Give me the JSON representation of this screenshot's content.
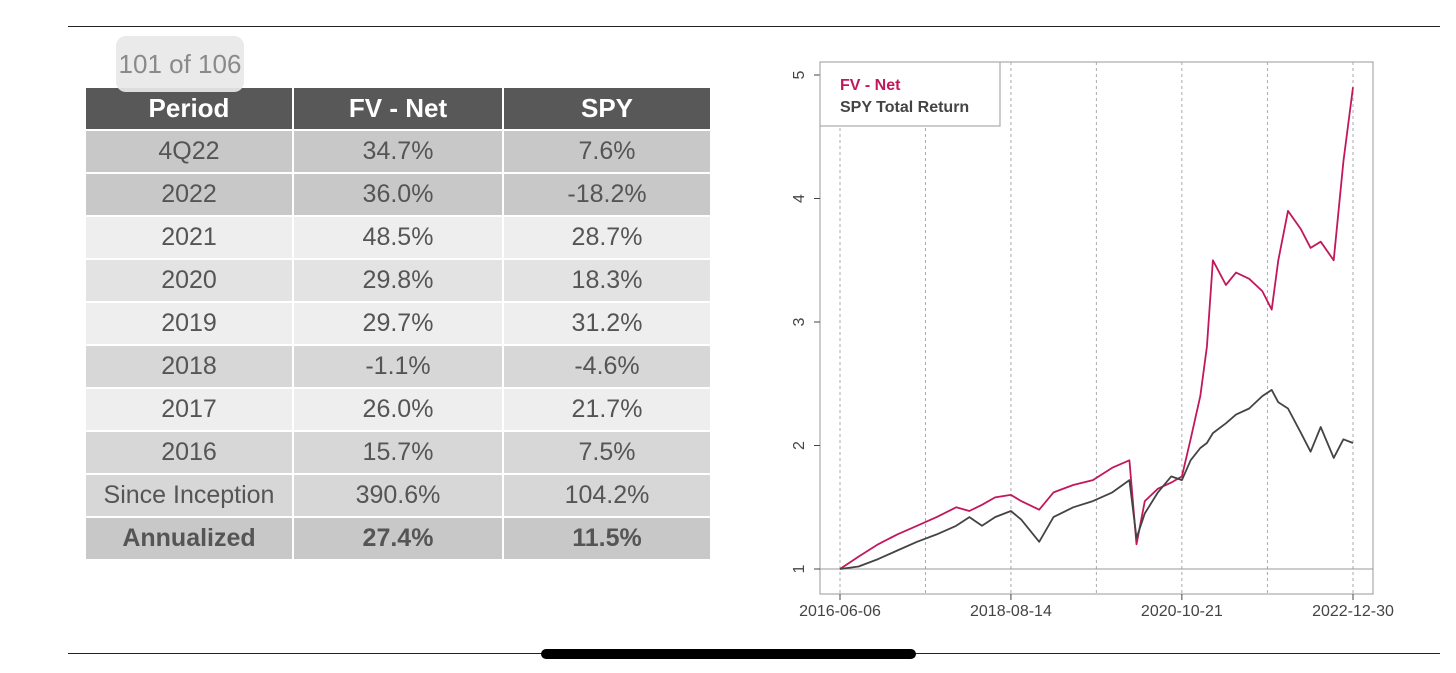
{
  "page_counter": "101 of 106",
  "table": {
    "headers": [
      "Period",
      "FV - Net",
      "SPY"
    ],
    "rows": [
      [
        "4Q22",
        "34.7%",
        "7.6%"
      ],
      [
        "2022",
        "36.0%",
        "-18.2%"
      ],
      [
        "2021",
        "48.5%",
        "28.7%"
      ],
      [
        "2020",
        "29.8%",
        "18.3%"
      ],
      [
        "2019",
        "29.7%",
        "31.2%"
      ],
      [
        "2018",
        "-1.1%",
        "-4.6%"
      ],
      [
        "2017",
        "26.0%",
        "21.7%"
      ],
      [
        "2016",
        "15.7%",
        "7.5%"
      ],
      [
        "Since Inception",
        "390.6%",
        "104.2%"
      ],
      [
        "Annualized",
        "27.4%",
        "11.5%"
      ]
    ]
  },
  "chart_data": {
    "type": "line",
    "title": "",
    "xlabel": "",
    "ylabel": "",
    "x_tick_labels": [
      "2016-06-06",
      "2018-08-14",
      "2020-10-21",
      "2022-12-30"
    ],
    "y_ticks": [
      1,
      2,
      3,
      4,
      5
    ],
    "xlim": [
      "2016-06-06",
      "2022-12-30"
    ],
    "ylim": [
      1,
      5
    ],
    "grid": "vertical dashed lines",
    "legend_position": "top-left",
    "series": [
      {
        "name": "FV - Net",
        "color": "#c2185b",
        "x": [
          "2016-06-06",
          "2016-09-01",
          "2016-12-01",
          "2017-03-01",
          "2017-06-01",
          "2017-09-01",
          "2017-12-01",
          "2018-02-01",
          "2018-04-01",
          "2018-06-01",
          "2018-08-14",
          "2018-10-01",
          "2018-12-24",
          "2019-03-01",
          "2019-06-01",
          "2019-09-01",
          "2019-12-01",
          "2020-02-19",
          "2020-03-23",
          "2020-05-01",
          "2020-07-01",
          "2020-09-01",
          "2020-10-21",
          "2020-12-01",
          "2021-01-15",
          "2021-02-15",
          "2021-03-15",
          "2021-05-15",
          "2021-07-01",
          "2021-09-01",
          "2021-11-01",
          "2021-12-15",
          "2022-01-15",
          "2022-03-01",
          "2022-05-01",
          "2022-06-15",
          "2022-08-01",
          "2022-10-01",
          "2022-11-15",
          "2022-12-30"
        ],
        "values": [
          1.0,
          1.1,
          1.2,
          1.28,
          1.35,
          1.42,
          1.5,
          1.47,
          1.52,
          1.58,
          1.6,
          1.55,
          1.48,
          1.62,
          1.68,
          1.72,
          1.82,
          1.88,
          1.2,
          1.55,
          1.65,
          1.7,
          1.75,
          2.05,
          2.4,
          2.8,
          3.5,
          3.3,
          3.4,
          3.35,
          3.25,
          3.1,
          3.5,
          3.9,
          3.75,
          3.6,
          3.65,
          3.5,
          4.3,
          4.9
        ]
      },
      {
        "name": "SPY Total Return",
        "color": "#444444",
        "x": [
          "2016-06-06",
          "2016-09-01",
          "2016-12-01",
          "2017-03-01",
          "2017-06-01",
          "2017-09-01",
          "2017-12-01",
          "2018-02-01",
          "2018-04-01",
          "2018-06-01",
          "2018-08-14",
          "2018-10-01",
          "2018-12-24",
          "2019-03-01",
          "2019-06-01",
          "2019-09-01",
          "2019-12-01",
          "2020-02-19",
          "2020-03-23",
          "2020-05-01",
          "2020-07-01",
          "2020-09-01",
          "2020-10-21",
          "2020-12-01",
          "2021-01-15",
          "2021-02-15",
          "2021-03-15",
          "2021-05-15",
          "2021-07-01",
          "2021-09-01",
          "2021-11-01",
          "2021-12-15",
          "2022-01-15",
          "2022-03-01",
          "2022-05-01",
          "2022-06-15",
          "2022-08-01",
          "2022-10-01",
          "2022-11-15",
          "2022-12-30"
        ],
        "values": [
          1.0,
          1.02,
          1.08,
          1.15,
          1.22,
          1.28,
          1.35,
          1.42,
          1.35,
          1.42,
          1.47,
          1.4,
          1.22,
          1.42,
          1.5,
          1.55,
          1.62,
          1.72,
          1.25,
          1.45,
          1.62,
          1.75,
          1.72,
          1.88,
          1.98,
          2.02,
          2.1,
          2.18,
          2.25,
          2.3,
          2.4,
          2.45,
          2.35,
          2.3,
          2.1,
          1.95,
          2.15,
          1.9,
          2.05,
          2.02
        ]
      }
    ]
  }
}
